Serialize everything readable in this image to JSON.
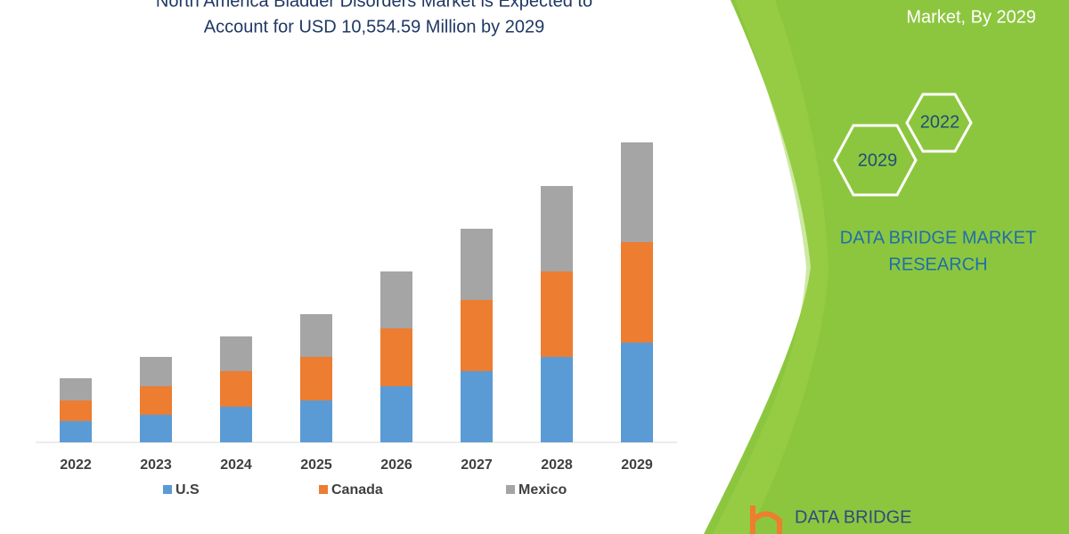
{
  "chart_data": {
    "type": "stacked-bar",
    "title": [
      "North America Bladder Disorders Market is Expected to",
      "Account for USD 10,554.59 Million by 2029"
    ],
    "categories": [
      "2022",
      "2023",
      "2024",
      "2025",
      "2026",
      "2027",
      "2028",
      "2029"
    ],
    "series": [
      {
        "name": "U.S",
        "color": "#5b9bd5",
        "values": [
          24,
          31,
          40,
          47,
          63,
          80,
          96,
          112
        ]
      },
      {
        "name": "Canada",
        "color": "#ed7d31",
        "values": [
          23,
          32,
          40,
          49,
          65,
          80,
          96,
          113
        ]
      },
      {
        "name": "Mexico",
        "color": "#a5a5a5",
        "values": [
          25,
          33,
          39,
          48,
          64,
          80,
          96,
          112
        ]
      }
    ],
    "ylim": [
      0,
      350
    ]
  },
  "side_panel": {
    "heading": "Market, By 2029",
    "hexagons": [
      "2022",
      "2029"
    ],
    "caption": [
      "DATA BRIDGE MARKET",
      "RESEARCH"
    ],
    "logo": "DATA BRIDGE"
  }
}
